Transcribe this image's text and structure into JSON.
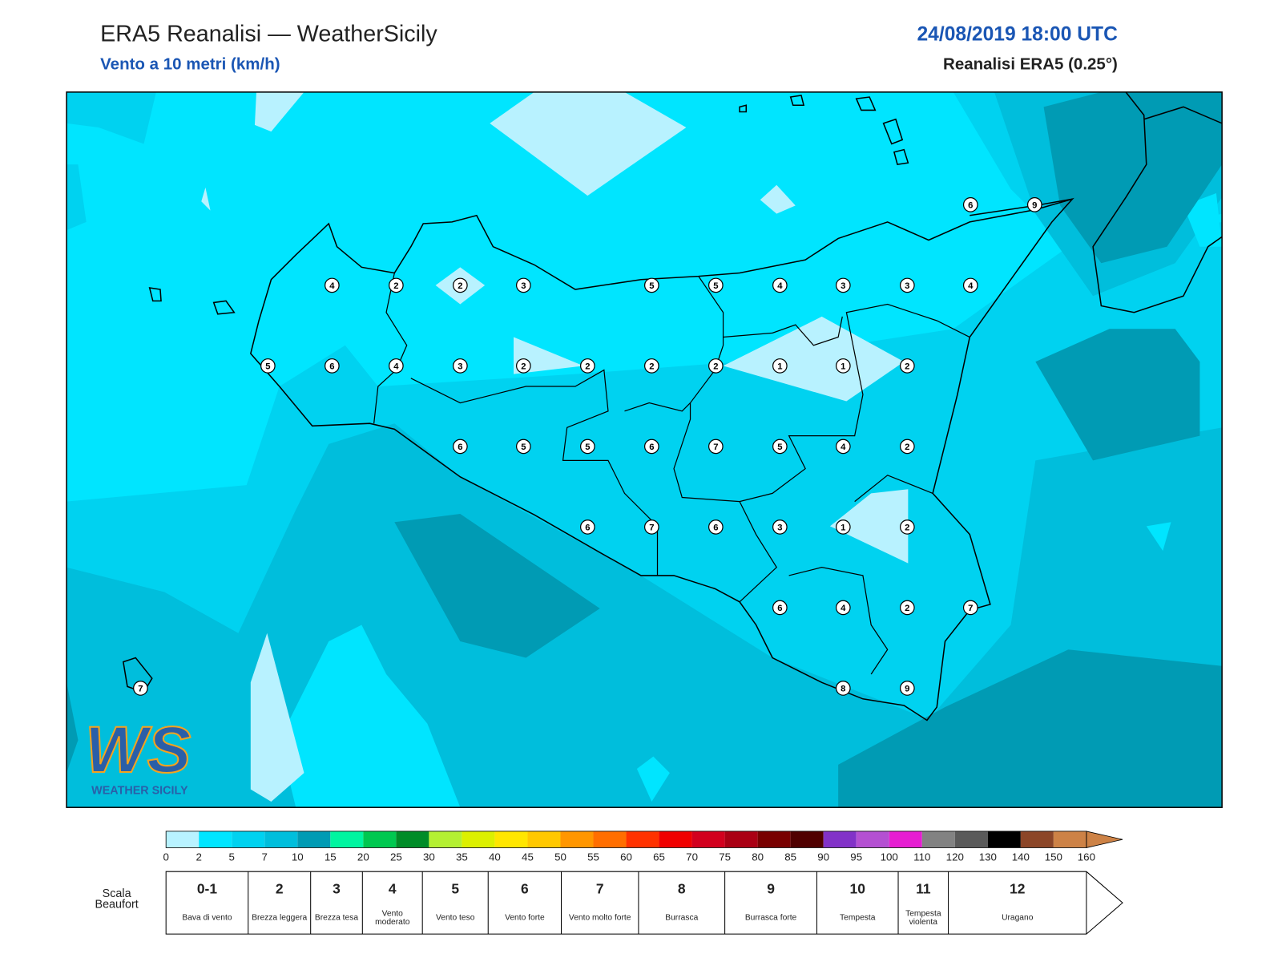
{
  "header": {
    "title": "ERA5 Reanalisi — WeatherSicily",
    "subtitle": "Vento a 10 metri (km/h)",
    "date": "24/08/2019 18:00 UTC",
    "source": "Reanalisi ERA5 (0.25°)"
  },
  "stations": [
    6,
    9,
    4,
    2,
    2,
    3,
    5,
    5,
    4,
    3,
    3,
    4,
    5,
    6,
    4,
    3,
    2,
    2,
    2,
    2,
    1,
    1,
    2,
    6,
    5,
    5,
    6,
    7,
    5,
    4,
    2,
    6,
    7,
    6,
    3,
    1,
    2,
    6,
    4,
    2,
    7,
    8,
    9,
    7
  ],
  "logo": {
    "text": "WS",
    "subtitle": "WEATHER SICILY"
  },
  "colorbar": {
    "ticks": [
      0,
      2,
      5,
      7,
      10,
      15,
      20,
      25,
      30,
      35,
      40,
      45,
      50,
      55,
      60,
      65,
      70,
      75,
      80,
      85,
      90,
      95,
      100,
      110,
      120,
      130,
      140,
      150,
      160
    ],
    "colors": [
      "#b8f2ff",
      "#00e5ff",
      "#00d2f0",
      "#00bedc",
      "#009bb4",
      "#00f5a0",
      "#00c850",
      "#008c28",
      "#b4f032",
      "#dcf000",
      "#ffe600",
      "#ffc800",
      "#ff9600",
      "#ff6e00",
      "#ff3200",
      "#f00000",
      "#d2001e",
      "#aa0014",
      "#780000",
      "#500000",
      "#8232c8",
      "#b450d2",
      "#e61ed2",
      "#828282",
      "#5a5a5a",
      "#000000",
      "#8c4628",
      "#cd8246"
    ]
  },
  "beaufort": {
    "label": "Scala Beaufort",
    "levels": [
      {
        "force": "0-1",
        "name": "Bava di vento"
      },
      {
        "force": "2",
        "name": "Brezza leggera"
      },
      {
        "force": "3",
        "name": "Brezza tesa"
      },
      {
        "force": "4",
        "name": "Vento moderato"
      },
      {
        "force": "5",
        "name": "Vento teso"
      },
      {
        "force": "6",
        "name": "Vento forte"
      },
      {
        "force": "7",
        "name": "Vento molto forte"
      },
      {
        "force": "8",
        "name": "Burrasca"
      },
      {
        "force": "9",
        "name": "Burrasca forte"
      },
      {
        "force": "10",
        "name": "Tempesta"
      },
      {
        "force": "11",
        "name": "Tempesta violenta"
      },
      {
        "force": "12",
        "name": "Uragano"
      }
    ]
  }
}
